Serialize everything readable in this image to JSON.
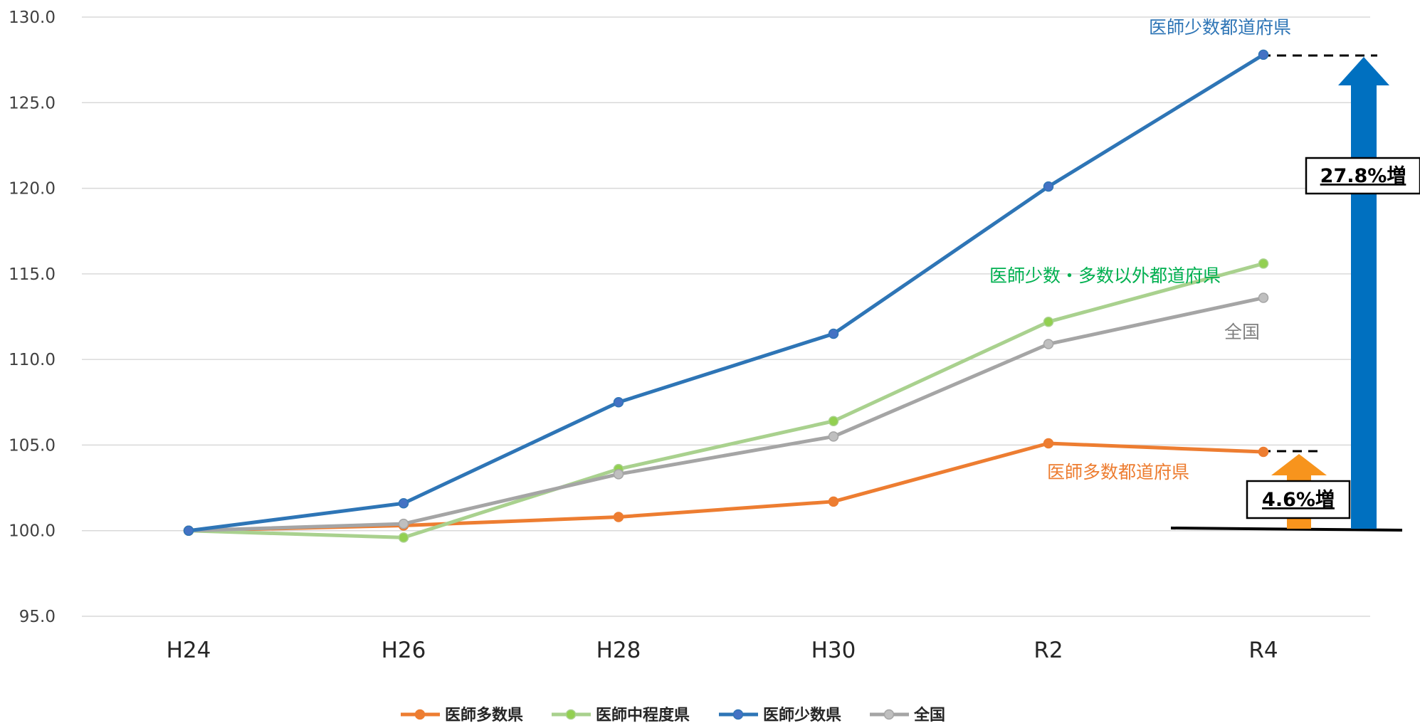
{
  "chart_data": {
    "type": "line",
    "categories": [
      "H24",
      "H26",
      "H28",
      "H30",
      "R2",
      "R4"
    ],
    "ylim": [
      95.0,
      130.0
    ],
    "yticks": [
      "95.0",
      "100.0",
      "105.0",
      "110.0",
      "115.0",
      "120.0",
      "125.0",
      "130.0"
    ],
    "grid": true,
    "legend_position": "bottom",
    "series": [
      {
        "name": "医師多数県",
        "color": "#ED7D31",
        "values": [
          100.0,
          100.3,
          100.8,
          101.7,
          105.1,
          104.6
        ]
      },
      {
        "name": "医師中程度県",
        "color": "#A9D18E",
        "marker_color": "#92D050",
        "values": [
          100.0,
          99.6,
          103.6,
          106.4,
          112.2,
          115.6
        ]
      },
      {
        "name": "医師少数県",
        "color": "#2E75B6",
        "marker_color": "#4472C4",
        "values": [
          100.0,
          101.6,
          107.5,
          111.5,
          120.1,
          127.8
        ]
      },
      {
        "name": "全国",
        "color": "#A5A5A5",
        "marker_color": "#BFBFBF",
        "values": [
          100.0,
          100.4,
          103.3,
          105.5,
          110.9,
          113.6
        ]
      }
    ],
    "annotations": {
      "shosu_label": "医師少数都道府県",
      "chuteido_label": "医師少数・多数以外都道府県",
      "zenkoku_label": "全国",
      "tasu_label": "医師多数都道府県",
      "shosu_increase": "27.8%増",
      "tasu_increase": "4.6%増"
    },
    "colors": {
      "shosu_label": "#2E75B6",
      "chuteido_label": "#00B050",
      "zenkoku_label": "#808080",
      "tasu_label": "#ED7D31",
      "big_arrow": "#0070C0",
      "small_arrow": "#F7941D"
    }
  }
}
